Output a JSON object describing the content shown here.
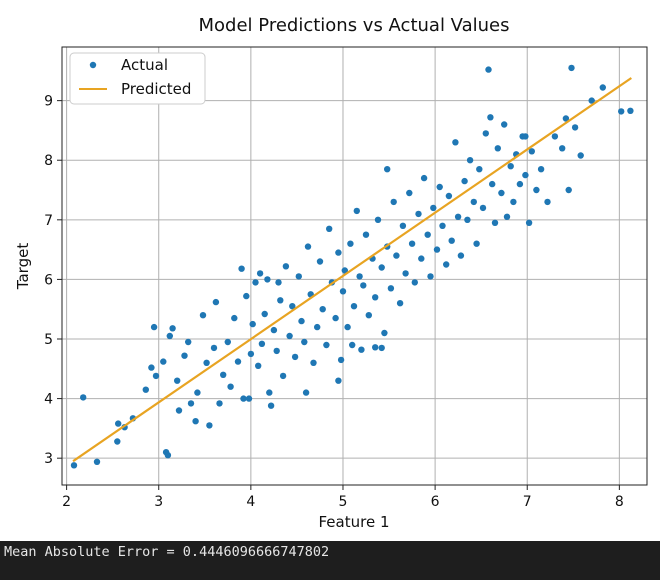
{
  "chart_data": {
    "type": "scatter",
    "title": "Model Predictions vs Actual Values",
    "xlabel": "Feature 1",
    "ylabel": "Target",
    "xlim": [
      1.95,
      8.3
    ],
    "ylim": [
      2.55,
      9.9
    ],
    "xticks": [
      2,
      3,
      4,
      5,
      6,
      7,
      8
    ],
    "yticks": [
      3,
      4,
      5,
      6,
      7,
      8,
      9
    ],
    "grid": true,
    "legend_position": "top-left",
    "series": [
      {
        "name": "Actual",
        "kind": "scatter",
        "color": "#1f77b4",
        "points": [
          [
            2.08,
            2.88
          ],
          [
            2.18,
            4.02
          ],
          [
            2.33,
            2.94
          ],
          [
            2.55,
            3.28
          ],
          [
            2.56,
            3.58
          ],
          [
            2.63,
            3.52
          ],
          [
            2.72,
            3.67
          ],
          [
            2.86,
            4.15
          ],
          [
            2.92,
            4.52
          ],
          [
            2.95,
            5.2
          ],
          [
            2.97,
            4.38
          ],
          [
            3.05,
            4.62
          ],
          [
            3.08,
            3.1
          ],
          [
            3.1,
            3.05
          ],
          [
            3.12,
            5.05
          ],
          [
            3.15,
            5.18
          ],
          [
            3.2,
            4.3
          ],
          [
            3.22,
            3.8
          ],
          [
            3.28,
            4.72
          ],
          [
            3.32,
            4.95
          ],
          [
            3.35,
            3.92
          ],
          [
            3.4,
            3.62
          ],
          [
            3.42,
            4.1
          ],
          [
            3.48,
            5.4
          ],
          [
            3.52,
            4.6
          ],
          [
            3.55,
            3.55
          ],
          [
            3.6,
            4.85
          ],
          [
            3.62,
            5.62
          ],
          [
            3.66,
            3.92
          ],
          [
            3.7,
            4.4
          ],
          [
            3.75,
            4.95
          ],
          [
            3.78,
            4.2
          ],
          [
            3.82,
            5.35
          ],
          [
            3.86,
            4.62
          ],
          [
            3.9,
            6.18
          ],
          [
            3.92,
            4.0
          ],
          [
            3.95,
            5.72
          ],
          [
            4.0,
            4.75
          ],
          [
            4.02,
            5.25
          ],
          [
            4.05,
            5.95
          ],
          [
            4.08,
            4.55
          ],
          [
            4.12,
            4.92
          ],
          [
            4.15,
            5.42
          ],
          [
            4.18,
            6.0
          ],
          [
            4.2,
            4.1
          ],
          [
            4.25,
            5.15
          ],
          [
            4.28,
            4.8
          ],
          [
            4.32,
            5.65
          ],
          [
            4.35,
            4.38
          ],
          [
            4.38,
            6.22
          ],
          [
            4.42,
            5.05
          ],
          [
            4.45,
            5.55
          ],
          [
            4.48,
            4.7
          ],
          [
            4.52,
            6.05
          ],
          [
            4.55,
            5.3
          ],
          [
            4.58,
            4.95
          ],
          [
            4.62,
            6.55
          ],
          [
            4.65,
            5.75
          ],
          [
            4.68,
            4.6
          ],
          [
            4.72,
            5.2
          ],
          [
            4.75,
            6.3
          ],
          [
            4.78,
            5.5
          ],
          [
            4.82,
            4.9
          ],
          [
            4.85,
            6.85
          ],
          [
            4.88,
            5.95
          ],
          [
            4.92,
            5.35
          ],
          [
            4.95,
            6.45
          ],
          [
            4.98,
            4.65
          ],
          [
            5.0,
            5.8
          ],
          [
            5.02,
            6.15
          ],
          [
            5.05,
            5.2
          ],
          [
            5.08,
            6.6
          ],
          [
            5.12,
            5.55
          ],
          [
            5.15,
            7.15
          ],
          [
            5.18,
            6.05
          ],
          [
            5.2,
            4.82
          ],
          [
            5.22,
            5.9
          ],
          [
            5.25,
            6.75
          ],
          [
            5.28,
            5.4
          ],
          [
            5.32,
            6.35
          ],
          [
            5.35,
            5.7
          ],
          [
            5.38,
            7.0
          ],
          [
            5.42,
            6.2
          ],
          [
            5.45,
            5.1
          ],
          [
            5.48,
            6.55
          ],
          [
            5.52,
            5.85
          ],
          [
            5.55,
            7.3
          ],
          [
            5.58,
            6.4
          ],
          [
            5.62,
            5.6
          ],
          [
            5.65,
            6.9
          ],
          [
            5.68,
            6.1
          ],
          [
            5.72,
            7.45
          ],
          [
            5.75,
            6.6
          ],
          [
            5.78,
            5.95
          ],
          [
            5.82,
            7.1
          ],
          [
            5.85,
            6.35
          ],
          [
            5.88,
            7.7
          ],
          [
            5.92,
            6.75
          ],
          [
            5.95,
            6.05
          ],
          [
            5.98,
            7.2
          ],
          [
            6.02,
            6.5
          ],
          [
            6.05,
            7.55
          ],
          [
            6.08,
            6.9
          ],
          [
            6.12,
            6.25
          ],
          [
            6.15,
            7.4
          ],
          [
            6.18,
            6.65
          ],
          [
            6.22,
            8.3
          ],
          [
            6.25,
            7.05
          ],
          [
            6.28,
            6.4
          ],
          [
            6.32,
            7.65
          ],
          [
            6.35,
            7.0
          ],
          [
            6.38,
            8.0
          ],
          [
            6.42,
            7.3
          ],
          [
            6.45,
            6.6
          ],
          [
            6.48,
            7.85
          ],
          [
            6.52,
            7.2
          ],
          [
            6.55,
            8.45
          ],
          [
            6.58,
            9.52
          ],
          [
            6.62,
            7.6
          ],
          [
            6.65,
            6.95
          ],
          [
            6.68,
            8.2
          ],
          [
            6.72,
            7.45
          ],
          [
            6.75,
            8.6
          ],
          [
            6.78,
            7.05
          ],
          [
            6.82,
            7.9
          ],
          [
            6.85,
            7.3
          ],
          [
            6.88,
            8.1
          ],
          [
            6.92,
            7.6
          ],
          [
            6.95,
            8.4
          ],
          [
            6.98,
            7.75
          ],
          [
            7.02,
            6.95
          ],
          [
            7.05,
            8.15
          ],
          [
            7.1,
            7.5
          ],
          [
            7.15,
            7.85
          ],
          [
            7.22,
            7.3
          ],
          [
            7.3,
            8.4
          ],
          [
            7.38,
            8.2
          ],
          [
            7.45,
            7.5
          ],
          [
            7.48,
            9.55
          ],
          [
            7.52,
            8.55
          ],
          [
            7.58,
            8.08
          ],
          [
            7.7,
            9.0
          ],
          [
            7.82,
            9.22
          ],
          [
            8.02,
            8.82
          ],
          [
            8.12,
            8.83
          ],
          [
            7.42,
            8.7
          ],
          [
            6.6,
            8.72
          ],
          [
            6.98,
            8.4
          ],
          [
            5.48,
            7.85
          ],
          [
            4.1,
            6.1
          ],
          [
            4.3,
            5.95
          ],
          [
            5.1,
            4.9
          ],
          [
            5.35,
            4.86
          ],
          [
            5.42,
            4.85
          ],
          [
            4.6,
            4.1
          ],
          [
            4.95,
            4.3
          ],
          [
            3.98,
            4.0
          ],
          [
            4.22,
            3.88
          ]
        ]
      },
      {
        "name": "Predicted",
        "kind": "line",
        "color": "#e8a422",
        "points": [
          [
            2.07,
            2.95
          ],
          [
            8.13,
            9.38
          ]
        ]
      }
    ]
  },
  "console": {
    "output_text": "Mean Absolute Error = 0.4446096666747802"
  }
}
